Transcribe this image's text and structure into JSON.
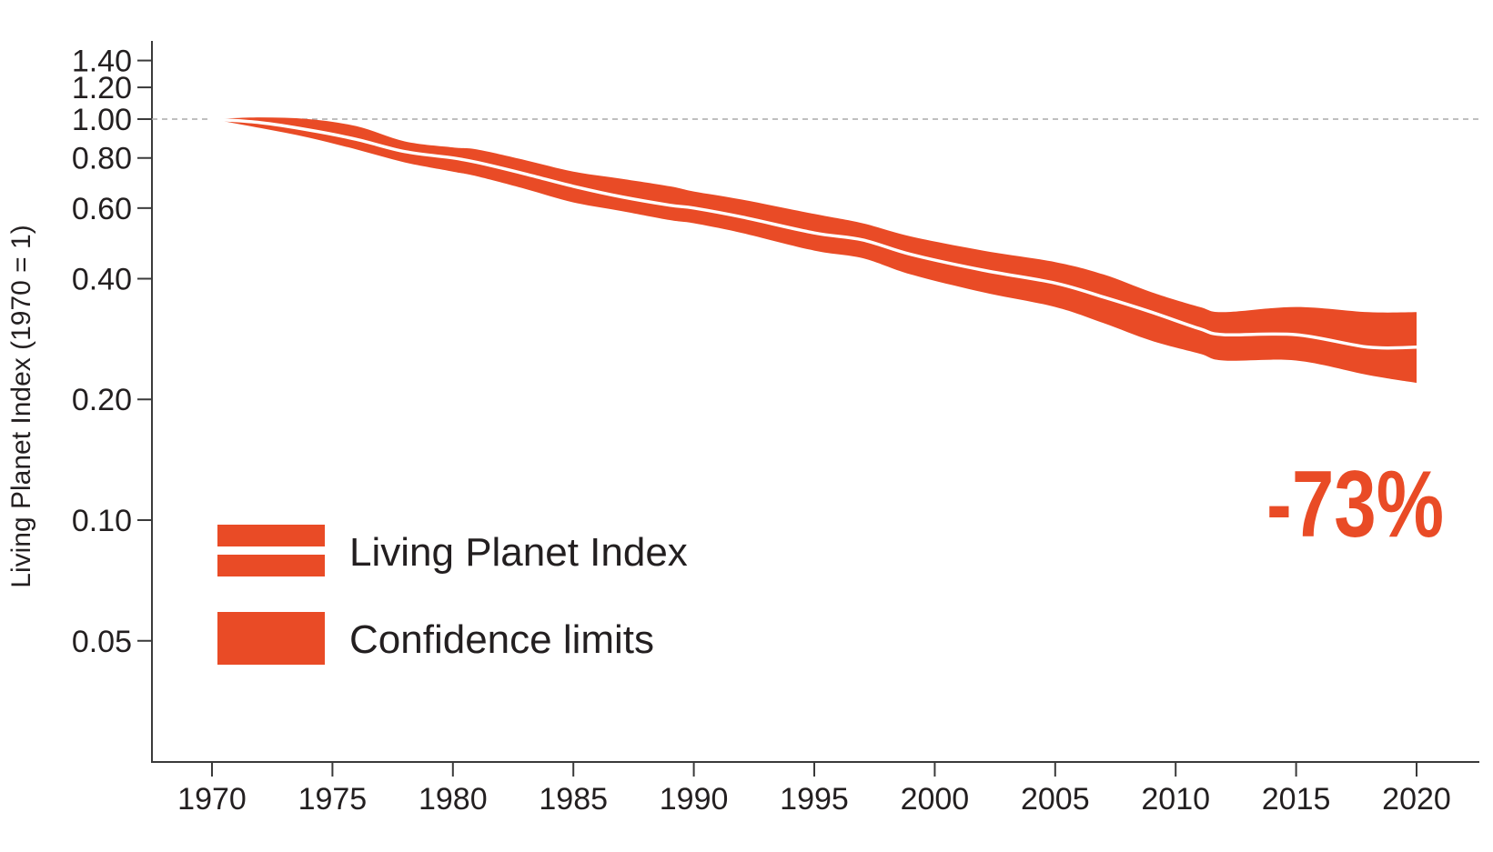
{
  "chart_data": {
    "type": "area",
    "title": "",
    "xlabel": "",
    "ylabel": "Living Planet Index (1970 = 1)",
    "yscale": "log",
    "xlim": [
      1967.5,
      2022.7
    ],
    "ylim": [
      0.025,
      1.55
    ],
    "x_ticks": [
      1970,
      1975,
      1980,
      1985,
      1990,
      1995,
      2000,
      2005,
      2010,
      2015,
      2020
    ],
    "x_tick_labels": [
      "1970",
      "1975",
      "1980",
      "1985",
      "1990",
      "1995",
      "2000",
      "2005",
      "2010",
      "2015",
      "2020"
    ],
    "y_ticks": [
      1.4,
      1.2,
      1.0,
      0.8,
      0.6,
      0.4,
      0.2,
      0.1,
      0.05
    ],
    "y_tick_labels": [
      "1.40",
      "1.20",
      "1.00",
      "0.80",
      "0.60",
      "0.40",
      "0.20",
      "0.10",
      "0.05"
    ],
    "reference_line": {
      "y": 1.0,
      "style": "dashed"
    },
    "grid": false,
    "legend": {
      "placement": "bottom-left",
      "entries": [
        {
          "label": "Living Planet Index",
          "swatch": "line-in-band"
        },
        {
          "label": "Confidence limits",
          "swatch": "band"
        }
      ]
    },
    "annotation": {
      "text": "-73%",
      "placement": "right, below series end"
    },
    "colors": {
      "band": "#e94b26",
      "index_line": "#ffffff",
      "axis": "#3a3a3a",
      "reference": "#aaaaaa",
      "text": "#231f20"
    },
    "series": [
      {
        "name": "Living Planet Index",
        "x": [
          1970,
          1972,
          1974,
          1976,
          1978,
          1980,
          1981,
          1983,
          1985,
          1987,
          1989,
          1990,
          1992,
          1995,
          1997,
          1999,
          2002,
          2005,
          2007,
          2009,
          2011,
          2012,
          2015,
          2018,
          2020
        ],
        "values": [
          1.0,
          0.98,
          0.94,
          0.89,
          0.83,
          0.8,
          0.78,
          0.73,
          0.68,
          0.64,
          0.61,
          0.6,
          0.57,
          0.52,
          0.5,
          0.46,
          0.42,
          0.39,
          0.36,
          0.33,
          0.3,
          0.29,
          0.29,
          0.27,
          0.27
        ]
      },
      {
        "name": "Confidence limits (upper)",
        "x": [
          1970,
          1972,
          1974,
          1976,
          1978,
          1980,
          1981,
          1983,
          1985,
          1987,
          1989,
          1990,
          1992,
          1995,
          1997,
          1999,
          2002,
          2005,
          2007,
          2009,
          2011,
          2012,
          2015,
          2018,
          2020
        ],
        "values": [
          1.0,
          1.01,
          1.0,
          0.96,
          0.88,
          0.85,
          0.84,
          0.79,
          0.74,
          0.71,
          0.68,
          0.66,
          0.63,
          0.58,
          0.55,
          0.51,
          0.47,
          0.44,
          0.41,
          0.37,
          0.34,
          0.33,
          0.34,
          0.33,
          0.33
        ]
      },
      {
        "name": "Confidence limits (lower)",
        "x": [
          1970,
          1972,
          1974,
          1976,
          1978,
          1980,
          1981,
          1983,
          1985,
          1987,
          1989,
          1990,
          1992,
          1995,
          1997,
          1999,
          2002,
          2005,
          2007,
          2009,
          2011,
          2012,
          2015,
          2018,
          2020
        ],
        "values": [
          1.0,
          0.95,
          0.9,
          0.84,
          0.78,
          0.74,
          0.72,
          0.67,
          0.62,
          0.59,
          0.56,
          0.55,
          0.52,
          0.47,
          0.45,
          0.41,
          0.37,
          0.34,
          0.31,
          0.28,
          0.26,
          0.25,
          0.25,
          0.23,
          0.22
        ]
      }
    ]
  }
}
